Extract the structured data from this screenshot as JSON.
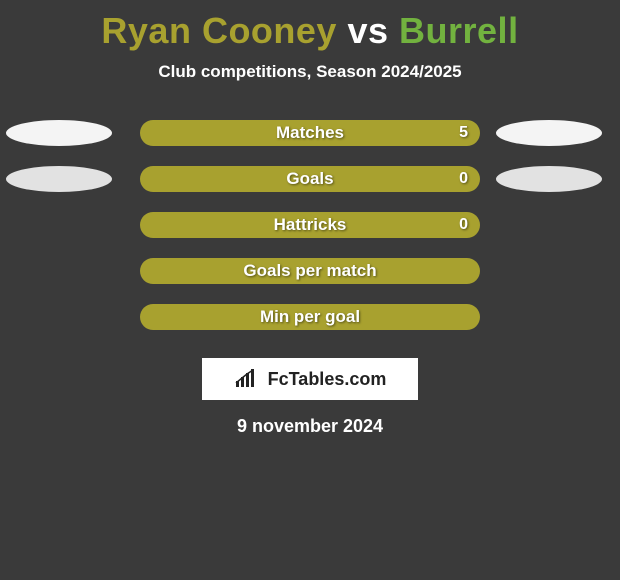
{
  "colors": {
    "background": "#3a3a3a",
    "player1": "#a8a12f",
    "player2": "#72b23f",
    "vs": "#ffffff",
    "text": "#ffffff",
    "ellipse_light": "#f4f4f4",
    "ellipse_dark": "#e2e2e2",
    "logo_bg": "#ffffff",
    "logo_text": "#222222"
  },
  "title": {
    "player1": "Ryan Cooney",
    "vs": "vs",
    "player2": "Burrell"
  },
  "subtitle": "Club competitions, Season 2024/2025",
  "stats": [
    {
      "label": "Matches",
      "value": "5",
      "left_pct": 100,
      "left_color": "#a8a12f",
      "right_pct": 0,
      "right_color": "#72b23f",
      "show_value": true,
      "left_ellipse": "#f4f4f4",
      "right_ellipse": "#f4f4f4"
    },
    {
      "label": "Goals",
      "value": "0",
      "left_pct": 100,
      "left_color": "#a8a12f",
      "right_pct": 0,
      "right_color": "#72b23f",
      "show_value": true,
      "left_ellipse": "#e2e2e2",
      "right_ellipse": "#e2e2e2"
    },
    {
      "label": "Hattricks",
      "value": "0",
      "left_pct": 100,
      "left_color": "#a8a12f",
      "right_pct": 0,
      "right_color": "#72b23f",
      "show_value": true,
      "left_ellipse": null,
      "right_ellipse": null
    },
    {
      "label": "Goals per match",
      "value": "",
      "left_pct": 100,
      "left_color": "#a8a12f",
      "right_pct": 0,
      "right_color": "#72b23f",
      "show_value": false,
      "left_ellipse": null,
      "right_ellipse": null
    },
    {
      "label": "Min per goal",
      "value": "",
      "left_pct": 100,
      "left_color": "#a8a12f",
      "right_pct": 0,
      "right_color": "#72b23f",
      "show_value": false,
      "left_ellipse": null,
      "right_ellipse": null
    }
  ],
  "logo": {
    "text": "FcTables.com",
    "icon": "chart-bars-icon"
  },
  "date": "9 november 2024"
}
